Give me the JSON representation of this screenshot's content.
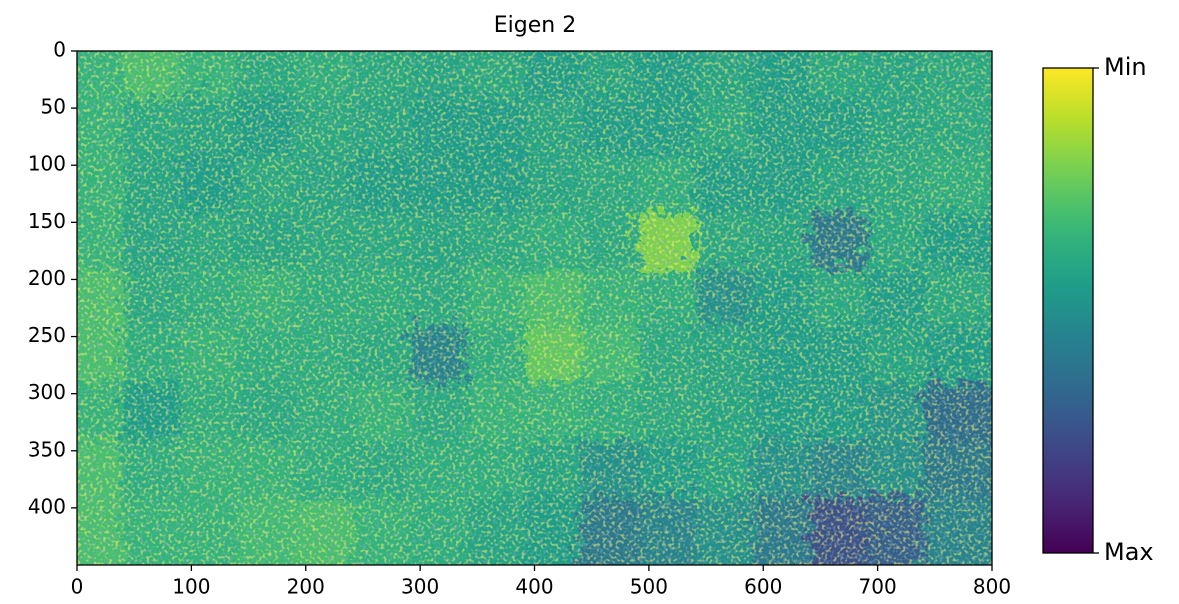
{
  "chart_data": {
    "type": "heatmap",
    "title": "Eigen 2",
    "xlim": [
      0,
      800
    ],
    "ylim": [
      450,
      0
    ],
    "xticks": [
      0,
      100,
      200,
      300,
      400,
      500,
      600,
      700,
      800
    ],
    "yticks": [
      0,
      50,
      100,
      150,
      200,
      250,
      300,
      350,
      400
    ],
    "colormap": "viridis_r",
    "colorbar_ticks": [
      {
        "value": 0,
        "label": "Min"
      },
      {
        "value": 1,
        "label": "Max"
      }
    ],
    "z": [
      [
        0.35,
        0.3,
        0.35,
        0.4,
        0.38,
        0.4,
        0.42,
        0.4,
        0.45,
        0.42,
        0.45,
        0.42,
        0.45,
        0.4,
        0.42,
        0.4
      ],
      [
        0.35,
        0.4,
        0.42,
        0.45,
        0.4,
        0.42,
        0.45,
        0.45,
        0.42,
        0.45,
        0.45,
        0.4,
        0.45,
        0.45,
        0.42,
        0.4
      ],
      [
        0.35,
        0.42,
        0.45,
        0.4,
        0.42,
        0.45,
        0.45,
        0.45,
        0.42,
        0.4,
        0.38,
        0.45,
        0.45,
        0.42,
        0.4,
        0.38
      ],
      [
        0.35,
        0.42,
        0.4,
        0.42,
        0.4,
        0.4,
        0.42,
        0.4,
        0.38,
        0.4,
        0.2,
        0.4,
        0.42,
        0.6,
        0.4,
        0.45
      ],
      [
        0.3,
        0.4,
        0.38,
        0.35,
        0.38,
        0.38,
        0.4,
        0.35,
        0.3,
        0.35,
        0.38,
        0.5,
        0.45,
        0.4,
        0.45,
        0.4
      ],
      [
        0.3,
        0.38,
        0.35,
        0.38,
        0.38,
        0.4,
        0.55,
        0.38,
        0.25,
        0.32,
        0.4,
        0.42,
        0.45,
        0.45,
        0.42,
        0.45
      ],
      [
        0.35,
        0.45,
        0.38,
        0.4,
        0.38,
        0.35,
        0.4,
        0.35,
        0.35,
        0.38,
        0.4,
        0.42,
        0.45,
        0.45,
        0.48,
        0.65
      ],
      [
        0.3,
        0.38,
        0.35,
        0.35,
        0.38,
        0.4,
        0.38,
        0.38,
        0.42,
        0.5,
        0.45,
        0.42,
        0.5,
        0.55,
        0.5,
        0.6
      ],
      [
        0.3,
        0.35,
        0.35,
        0.32,
        0.3,
        0.35,
        0.38,
        0.42,
        0.45,
        0.6,
        0.55,
        0.5,
        0.6,
        0.75,
        0.7,
        0.55
      ]
    ]
  }
}
